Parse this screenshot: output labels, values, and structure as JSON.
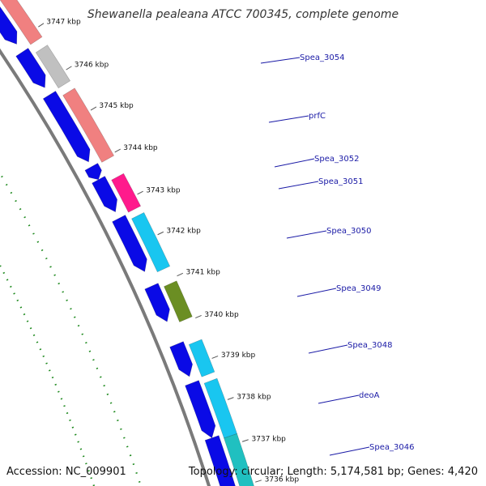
{
  "title": "Shewanella pealeana ATCC 700345, complete genome",
  "footer": {
    "accession": "Accession: NC_009901",
    "summary": "Topology: circular; Length: 5,174,581 bp; Genes: 4,420"
  },
  "colors": {
    "backbone": "#7a7a7a",
    "forward_strand": "#0a0ae6",
    "dotted_ring": "#1f8a1f",
    "label": "#1a1aa6"
  },
  "ticks": [
    "3747 kbp",
    "3746 kbp",
    "3745 kbp",
    "3744 kbp",
    "3743 kbp",
    "3742 kbp",
    "3741 kbp",
    "3740 kbp",
    "3739 kbp",
    "3738 kbp",
    "3737 kbp",
    "3736 kbp"
  ],
  "genes": [
    {
      "label": "",
      "color": "#f08080"
    },
    {
      "label": "Spea_3054",
      "color": "#c0c0c0"
    },
    {
      "label": "prfC",
      "color": "#f08080"
    },
    {
      "label": "Spea_3052",
      "color": ""
    },
    {
      "label": "Spea_3051",
      "color": "#ff1a8c"
    },
    {
      "label": "Spea_3050",
      "color": "#19c6f0"
    },
    {
      "label": "Spea_3049",
      "color": "#6b8e23"
    },
    {
      "label": "Spea_3048",
      "color": "#19c6f0"
    },
    {
      "label": "deoA",
      "color": "#19c6f0"
    },
    {
      "label": "Spea_3046",
      "color": "#20c0c0"
    }
  ]
}
